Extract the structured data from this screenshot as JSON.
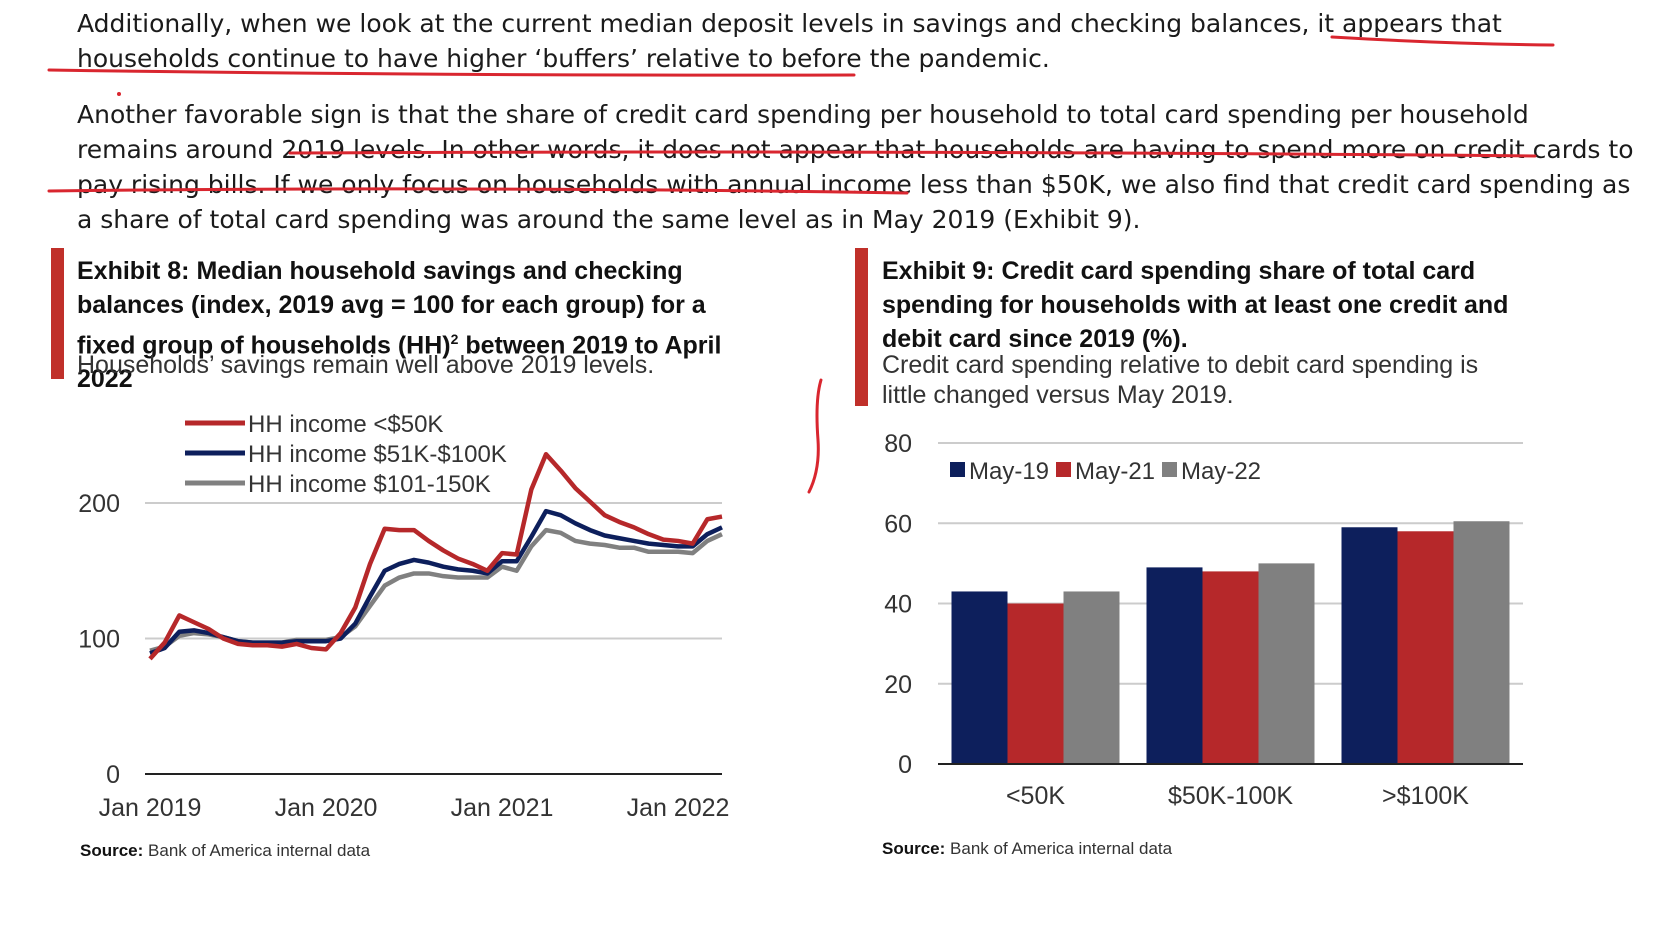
{
  "paragraphs": {
    "p1": "Additionally, when we look at the current median deposit levels in savings and checking balances, it appears that households continue to have higher ‘buffers’ relative to before the pandemic.",
    "p2": "Another favorable sign is that the share of credit card spending per household to total card spending per household remains around 2019 levels. In other words, it does not appear that households are having to spend more on credit cards to pay rising bills. If we only focus on households with annual income less than $50K, we also find that credit card spending as a share of total card spending was around the same level as in May 2019 (Exhibit 9)."
  },
  "exhibit8": {
    "title_a": "Exhibit 8: Median household savings and checking balances (index, 2019 avg = 100 for each group) for a fixed group of households (HH)",
    "title_sup": "2",
    "title_b": " between 2019 to April 2022",
    "subtitle": "Households’ savings remain well above 2019 levels.",
    "source_label": "Source:",
    "source_text": "Bank of America internal data"
  },
  "exhibit9": {
    "title": "Exhibit 9: Credit card spending share of total card spending for households with at least one credit and debit card since 2019 (%).",
    "subtitle": "Credit card spending relative to debit card spending is little changed versus May 2019.",
    "source_label": "Source:",
    "source_text": "Bank of America internal data"
  },
  "colors": {
    "red": "#b6282a",
    "navy": "#0d1f5c",
    "gray": "#808080",
    "exhibit_bar": "#c0302a",
    "annotation": "#d9262f"
  },
  "chart_data": [
    {
      "type": "line",
      "ylim": [
        0,
        200
      ],
      "yticks": [
        0,
        100,
        200
      ],
      "x_tick_labels": [
        "Jan 2019",
        "Jan 2020",
        "Jan 2021",
        "Jan 2022"
      ],
      "x_tick_months": [
        0,
        12,
        24,
        36
      ],
      "x_range_months": [
        0,
        39
      ],
      "grid": true,
      "legend_position": "top-left",
      "series": [
        {
          "name": "HH income <$50K",
          "color": "#b6282a",
          "values": [
            85,
            97,
            117,
            112,
            107,
            100,
            96,
            95,
            95,
            94,
            96,
            93,
            92,
            104,
            123,
            155,
            181,
            180,
            180,
            172,
            165,
            159,
            155,
            150,
            163,
            162,
            210,
            236,
            224,
            211,
            201,
            191,
            186,
            182,
            177,
            173,
            172,
            170,
            188,
            190
          ]
        },
        {
          "name": "HH income $51K-$100K",
          "color": "#0d1f5c",
          "values": [
            89,
            93,
            105,
            106,
            104,
            101,
            98,
            97,
            97,
            97,
            98,
            98,
            98,
            100,
            111,
            131,
            150,
            155,
            158,
            156,
            153,
            151,
            150,
            148,
            157,
            157,
            175,
            194,
            191,
            185,
            180,
            176,
            174,
            172,
            170,
            169,
            168,
            168,
            177,
            182
          ]
        },
        {
          "name": "HH income $101-150K",
          "color": "#808080",
          "values": [
            91,
            94,
            102,
            104,
            103,
            101,
            98,
            97,
            97,
            97,
            99,
            99,
            99,
            101,
            109,
            124,
            139,
            145,
            148,
            148,
            146,
            145,
            145,
            145,
            153,
            150,
            168,
            180,
            178,
            172,
            170,
            169,
            167,
            167,
            164,
            164,
            164,
            163,
            172,
            177
          ]
        }
      ]
    },
    {
      "type": "bar",
      "ylim": [
        0,
        80
      ],
      "yticks": [
        0,
        20,
        40,
        60,
        80
      ],
      "categories": [
        "<50K",
        "$50K-100K",
        ">$100K"
      ],
      "grid": true,
      "legend_position": "top-left",
      "series": [
        {
          "name": "May-19",
          "color": "#0d1f5c",
          "values": [
            43,
            49,
            59
          ]
        },
        {
          "name": "May-21",
          "color": "#b6282a",
          "values": [
            40,
            48,
            58
          ]
        },
        {
          "name": "May-22",
          "color": "#808080",
          "values": [
            43,
            50,
            60.5
          ]
        }
      ]
    }
  ]
}
